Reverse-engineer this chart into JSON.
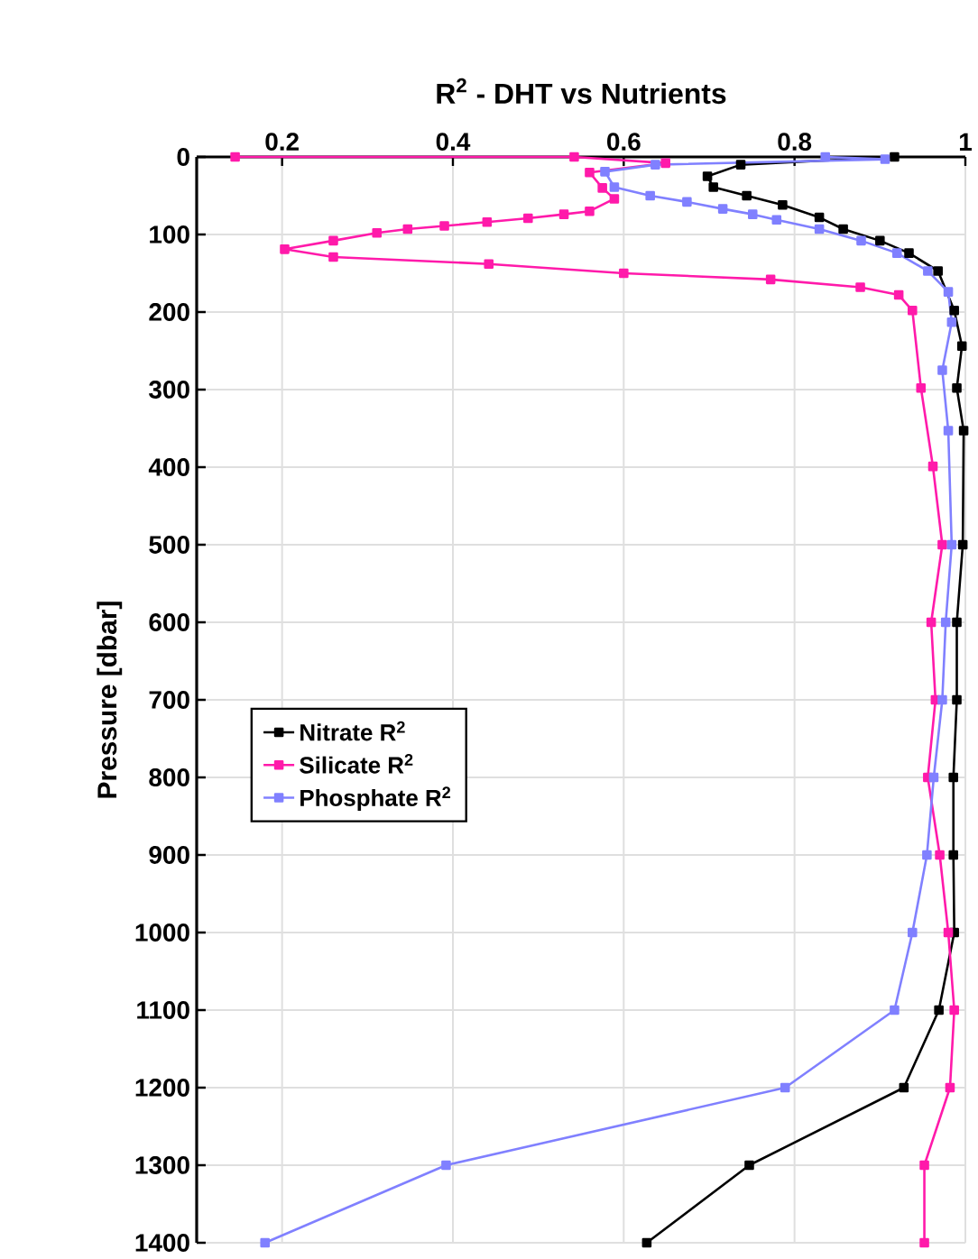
{
  "chart_data": {
    "type": "line",
    "title": "R$^{2}$ - DHT vs Nutrients",
    "ylabel": "Pressure [dbar]",
    "xlim": [
      0.1,
      1.0
    ],
    "xticks": [
      0.2,
      0.4,
      0.6,
      0.8,
      1
    ],
    "ylim": [
      1400,
      0
    ],
    "yticks": [
      0,
      100,
      200,
      300,
      400,
      500,
      600,
      700,
      800,
      900,
      1000,
      1100,
      1200,
      1300,
      1400
    ],
    "grid": true,
    "legend": "left",
    "marker": "square",
    "series": [
      {
        "name": "Nitrate R$^{2}$",
        "color": "#000000",
        "x": [
          0.917,
          0.737,
          0.698,
          0.705,
          0.744,
          0.786,
          0.829,
          0.857,
          0.9,
          0.934,
          0.968,
          0.987,
          0.996,
          0.99,
          0.998,
          0.997,
          0.99,
          0.99,
          0.986,
          0.986,
          0.987,
          0.969,
          0.928,
          0.747,
          0.627
        ],
        "values": [
          0,
          10,
          25,
          39,
          50,
          62,
          78,
          93,
          108,
          124,
          147,
          198,
          244,
          298,
          353,
          500,
          600,
          700,
          800,
          900,
          1000,
          1100,
          1200,
          1300,
          1400
        ]
      },
      {
        "name": "Silicate R$^{2}$",
        "color": "#ff1aaa",
        "x": [
          0.145,
          0.542,
          0.649,
          0.56,
          0.575,
          0.589,
          0.56,
          0.53,
          0.488,
          0.44,
          0.39,
          0.347,
          0.311,
          0.26,
          0.203,
          0.26,
          0.442,
          0.6,
          0.772,
          0.877,
          0.922,
          0.938,
          0.948,
          0.962,
          0.973,
          0.96,
          0.965,
          0.956,
          0.97,
          0.98,
          0.987,
          0.982,
          0.952,
          0.952
        ],
        "values": [
          0,
          0,
          8,
          20,
          40,
          54,
          70,
          74,
          79,
          84,
          89,
          93,
          98,
          108,
          119,
          129,
          138,
          150,
          158,
          168,
          178,
          198,
          298,
          399,
          500,
          600,
          700,
          800,
          900,
          1000,
          1100,
          1200,
          1300,
          1400
        ]
      },
      {
        "name": "Phosphate R$^{2}$",
        "color": "#8080ff",
        "x": [
          0.836,
          0.906,
          0.637,
          0.578,
          0.589,
          0.631,
          0.674,
          0.716,
          0.751,
          0.779,
          0.829,
          0.878,
          0.92,
          0.956,
          0.98,
          0.984,
          0.973,
          0.98,
          0.984,
          0.977,
          0.973,
          0.963,
          0.955,
          0.938,
          0.917,
          0.789,
          0.392,
          0.18
        ],
        "values": [
          0,
          3,
          10,
          19,
          39,
          50,
          58,
          67,
          74,
          81,
          93,
          108,
          124,
          147,
          174,
          213,
          275,
          353,
          500,
          600,
          700,
          800,
          900,
          1000,
          1100,
          1200,
          1300,
          1400
        ]
      }
    ]
  }
}
